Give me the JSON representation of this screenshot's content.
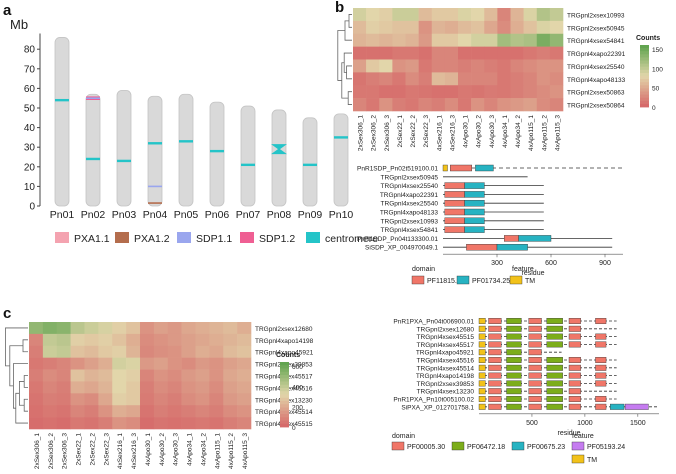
{
  "panel_a": {
    "letter": "a",
    "unit": "Mb",
    "y_ticks": [
      "0",
      "10",
      "20",
      "30",
      "40",
      "50",
      "60",
      "70",
      "80"
    ],
    "chromosomes": [
      "Pn01",
      "Pn02",
      "Pn03",
      "Pn04",
      "Pn05",
      "Pn06",
      "Pn07",
      "Pn08",
      "Pn09",
      "Pn10"
    ],
    "chrom_lengths": [
      86,
      57,
      59,
      56,
      57,
      53,
      51,
      49,
      45,
      47
    ],
    "centromere_pos": [
      54,
      24,
      23,
      32,
      33,
      28,
      21,
      29,
      21,
      35
    ],
    "marks": [
      {
        "chrom": 1,
        "pos": 54.5,
        "type": "SDP1.2"
      },
      {
        "chrom": 1,
        "pos": 55.5,
        "type": "SDP1.2"
      },
      {
        "chrom": 1,
        "pos": 55.0,
        "type": "SDP1.1"
      },
      {
        "chrom": 3,
        "pos": 10,
        "type": "SDP1.1"
      },
      {
        "chrom": 3,
        "pos": 1.5,
        "type": "PXA1.2"
      }
    ],
    "legend": [
      {
        "label": "PXA1.1",
        "color": "#f4a3b0"
      },
      {
        "label": "PXA1.2",
        "color": "#b46d4d"
      },
      {
        "label": "SDP1.1",
        "color": "#9aa6ee"
      },
      {
        "label": "SDP1.2",
        "color": "#ef5f93"
      },
      {
        "label": "centromere",
        "color": "#24c4c8"
      }
    ]
  },
  "panel_b": {
    "letter": "b",
    "columns": [
      "2xSex306_1",
      "2xSex306_2",
      "2xSex306_3",
      "2xSex22_1",
      "2xSex22_2",
      "2xSex22_3",
      "4xSex216_1",
      "4xSex216_3",
      "4xApo30_1",
      "4xApo30_2",
      "4xApo30_3",
      "4xApo34_1",
      "4xApo34_2",
      "4xApo115_1",
      "4xApo115_2",
      "4xApo115_3"
    ],
    "rows": [
      "TRGpnl2xsex10993",
      "TRGpnl2xsex50945",
      "TRGpnl4xsex54841",
      "TRGpnl4xapo22391",
      "TRGpnl4xsex25540",
      "TRGpnl4xapo48133",
      "TRGpnl2xsex50863",
      "TRGpnl2xsex50864"
    ],
    "legend_title": "Counts",
    "legend_ticks": [
      "150",
      "100",
      "50",
      "0"
    ],
    "heat_values": [
      [
        90,
        80,
        75,
        95,
        95,
        60,
        70,
        70,
        85,
        80,
        60,
        20,
        55,
        85,
        110,
        100
      ],
      [
        60,
        75,
        70,
        65,
        65,
        30,
        55,
        50,
        60,
        65,
        45,
        25,
        50,
        65,
        85,
        80
      ],
      [
        55,
        60,
        55,
        60,
        55,
        35,
        70,
        70,
        80,
        90,
        90,
        120,
        110,
        115,
        145,
        130
      ],
      [
        5,
        5,
        5,
        10,
        10,
        5,
        20,
        20,
        5,
        5,
        5,
        5,
        5,
        10,
        15,
        10
      ],
      [
        40,
        70,
        80,
        30,
        35,
        10,
        20,
        20,
        15,
        20,
        15,
        10,
        20,
        25,
        30,
        30
      ],
      [
        8,
        15,
        20,
        10,
        25,
        15,
        60,
        55,
        20,
        20,
        20,
        10,
        15,
        20,
        30,
        25
      ],
      [
        10,
        10,
        5,
        5,
        10,
        8,
        5,
        5,
        10,
        8,
        12,
        10,
        15,
        20,
        25,
        30
      ],
      [
        20,
        10,
        30,
        15,
        10,
        20,
        15,
        25,
        10,
        30,
        20,
        30,
        35,
        40,
        25,
        20
      ]
    ],
    "proteins": [
      "PnR1SDP_Pn02t519100.01",
      "TRGpnl2xsex50945",
      "TRGpnl4xsex25540",
      "TRGpnl4xapo22391",
      "TRGpnl4xsex25540",
      "TRGpnl4xapo48133",
      "TRGpnl2xsex10993",
      "TRGpnl4xsex54841",
      "PnR1SDP_Pn04t133300.01",
      "SiSDP_XP_004970049.1"
    ],
    "x_axis": {
      "label": "residue",
      "ticks": [
        "300",
        "600",
        "900"
      ],
      "range": [
        0,
        1000
      ]
    },
    "legend_domain_title": "domain",
    "legend_feature_title": "feature",
    "legend_items": [
      {
        "label": "PF11815.11",
        "color": "#f07668"
      },
      {
        "label": "PF01734.25",
        "color": "#27b3c2"
      },
      {
        "label": "TM",
        "color": "#f2c21a"
      }
    ]
  },
  "panel_c": {
    "letter": "c",
    "columns": [
      "2xSex306_1",
      "2xSex306_2",
      "2xSex306_3",
      "2xSex22_1",
      "2xSex22_2",
      "2xSex22_3",
      "4xSex216_1",
      "4xSex216_3",
      "4xApo30_1",
      "4xApo30_2",
      "4xApo30_3",
      "4xApo34_1",
      "4xApo34_2",
      "4xApo115_1",
      "4xApo115_2",
      "4xApo115_3"
    ],
    "rows": [
      "TRGpnl2xsex12680",
      "TRGpnl4xapo14198",
      "TRGpnl4xapo45921",
      "TRGpnl2xsex39853",
      "TRGpnl4xsex45517",
      "TRGpnl4xsex45516",
      "TRGpnl4xsex13230",
      "TRGpnl4xsex45514",
      "TRGpnl4xsex45515"
    ],
    "legend_title": "Counts",
    "legend_ticks": [
      "600",
      "400",
      "200",
      "0"
    ],
    "heat_values": [
      [
        520,
        560,
        540,
        420,
        380,
        350,
        300,
        260,
        120,
        160,
        140,
        180,
        200,
        220,
        240,
        200
      ],
      [
        80,
        400,
        420,
        300,
        280,
        300,
        260,
        200,
        100,
        120,
        140,
        160,
        180,
        200,
        220,
        240
      ],
      [
        60,
        380,
        400,
        260,
        240,
        280,
        300,
        220,
        90,
        110,
        120,
        160,
        200,
        180,
        240,
        260
      ],
      [
        40,
        60,
        80,
        120,
        160,
        200,
        360,
        340,
        140,
        160,
        120,
        100,
        140,
        120,
        160,
        180
      ],
      [
        60,
        100,
        80,
        260,
        220,
        240,
        320,
        300,
        80,
        120,
        100,
        140,
        160,
        120,
        180,
        200
      ],
      [
        40,
        80,
        60,
        200,
        180,
        220,
        320,
        280,
        60,
        100,
        80,
        120,
        140,
        100,
        160,
        180
      ],
      [
        30,
        60,
        50,
        120,
        100,
        180,
        300,
        280,
        50,
        80,
        60,
        100,
        120,
        80,
        140,
        160
      ],
      [
        20,
        40,
        30,
        80,
        60,
        120,
        200,
        180,
        30,
        60,
        40,
        60,
        80,
        60,
        100,
        120
      ],
      [
        10,
        20,
        10,
        40,
        30,
        60,
        120,
        100,
        10,
        30,
        20,
        30,
        40,
        30,
        60,
        80
      ]
    ],
    "proteins": [
      "PnR1PXA_Pn04t006900.01",
      "TRGpnl2xsex12680",
      "TRGpnl4xsex45515",
      "TRGpnl4xsex45517",
      "TRGpnl4xapo45921",
      "TRGpnl4xsex45516",
      "TRGpnl4xsex45514",
      "TRGpnl4xapo14198",
      "TRGpnl2xsex39853",
      "TRGpnl4xsex13230",
      "PnR1PXA_Pn10t005100.02",
      "SiPXA_XP_012701758.1"
    ],
    "x_axis": {
      "label": "residue",
      "ticks": [
        "500",
        "1000",
        "1500"
      ],
      "range": [
        0,
        1700
      ]
    },
    "legend_domain_title": "domain",
    "legend_feature_title": "feature",
    "legend_items": [
      {
        "label": "PF00005.30",
        "color": "#f07668"
      },
      {
        "label": "PF06472.18",
        "color": "#7cad1a"
      },
      {
        "label": "PF00675.23",
        "color": "#27b3c2"
      },
      {
        "label": "PF05193.24",
        "color": "#c57cf0"
      },
      {
        "label": "TM",
        "color": "#f2c21a"
      }
    ]
  }
}
